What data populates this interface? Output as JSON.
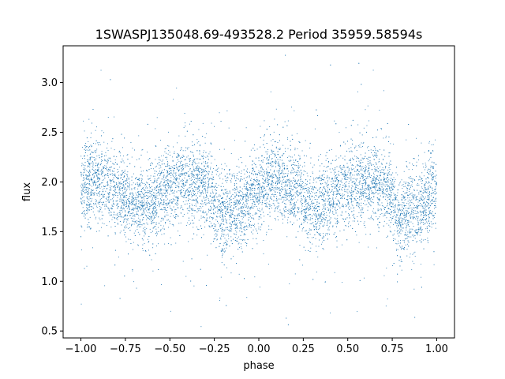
{
  "chart_data": {
    "type": "scatter",
    "title": "1SWASPJ135048.69-493528.2 Period 35959.58594s",
    "xlabel": "phase",
    "ylabel": "flux",
    "xlim": [
      -1.1,
      1.1
    ],
    "ylim": [
      0.43,
      3.37
    ],
    "xticks": [
      -1.0,
      -0.75,
      -0.5,
      -0.25,
      0.0,
      0.25,
      0.5,
      0.75,
      1.0
    ],
    "xtick_labels": [
      "−1.00",
      "−0.75",
      "−0.50",
      "−0.25",
      "0.00",
      "0.25",
      "0.50",
      "0.75",
      "1.00"
    ],
    "yticks": [
      0.5,
      1.0,
      1.5,
      2.0,
      2.5,
      3.0
    ],
    "ytick_labels": [
      "0.5",
      "1.0",
      "1.5",
      "2.0",
      "2.5",
      "3.0"
    ],
    "grid": false,
    "point_color": "#1f77b4",
    "series": [
      {
        "phase_profile": {
          "x": [
            -1.0,
            -0.9,
            -0.8,
            -0.7,
            -0.6,
            -0.5,
            -0.4,
            -0.3,
            -0.2,
            -0.1,
            0.0,
            0.1,
            0.2,
            0.3,
            0.4,
            0.5,
            0.6,
            0.7,
            0.8,
            0.9,
            1.0
          ],
          "y": [
            1.95,
            2.02,
            1.93,
            1.76,
            1.83,
            1.96,
            2.01,
            1.95,
            1.66,
            1.72,
            1.95,
            2.02,
            1.93,
            1.76,
            1.83,
            1.96,
            2.01,
            1.95,
            1.66,
            1.72,
            1.95
          ]
        },
        "scatter_sigma": 0.2,
        "n_points": 9000
      }
    ]
  }
}
